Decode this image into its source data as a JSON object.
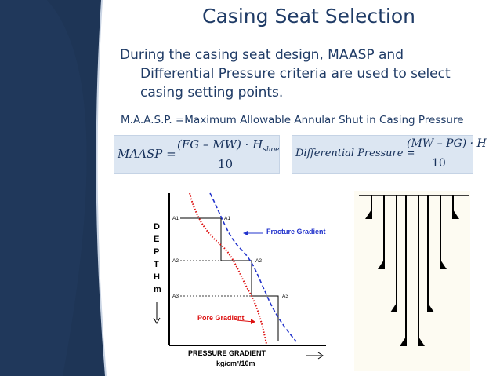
{
  "slide": {
    "title": "Casing Seat Selection",
    "body_lines": [
      "During the casing seat design, MAASP and",
      "Differential Pressure criteria are used to select",
      "casing setting points."
    ],
    "definition": "M.A.A.S.P. =Maximum Allowable Annular Shut in Casing Pressure"
  },
  "equations": {
    "maasp": {
      "lhs": "MAASP =",
      "numerator": "(FG – MW) · H",
      "subscript": "shoe",
      "denominator": "10"
    },
    "dp": {
      "lhs": "Differential Pressure =",
      "numerator": "(MW – PG) · H",
      "denominator": "10"
    }
  },
  "chart_data": {
    "type": "line",
    "xlabel": "PRESSURE GRADIENT",
    "xunit": "kg/cm²/10m",
    "ylabel_letters": [
      "D",
      "E",
      "P",
      "T",
      "H",
      "m"
    ],
    "series": [
      {
        "name": "Fracture Gradient",
        "color": "#2233cc",
        "style": "dashed"
      },
      {
        "name": "Pore Gradient",
        "color": "#dd1111",
        "style": "dotted"
      }
    ],
    "markers": [
      {
        "left": "A1",
        "right": "A1"
      },
      {
        "left": "A2",
        "right": "A2"
      },
      {
        "left": "A3",
        "right": "A3"
      }
    ]
  },
  "colors": {
    "title": "#1f3b66",
    "sidebar": "#1e3556",
    "eq_box": "#dce6f2"
  }
}
